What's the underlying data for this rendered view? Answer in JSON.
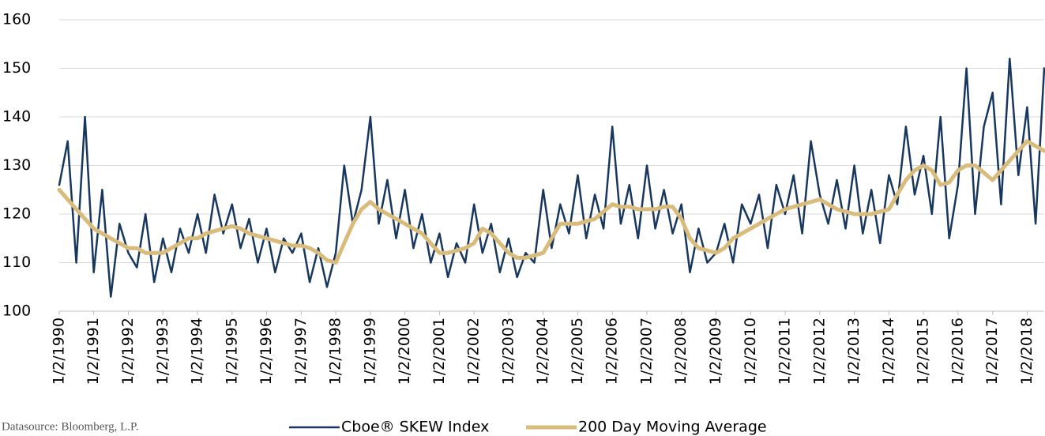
{
  "chart_data": {
    "type": "line",
    "source": "Datasource: Bloomberg, L.P.",
    "x": [
      "1990-01-02",
      "1990-04-01",
      "1990-07-01",
      "1990-10-01",
      "1991-01-02",
      "1991-04-01",
      "1991-07-01",
      "1991-10-01",
      "1992-01-02",
      "1992-04-01",
      "1992-07-01",
      "1992-10-01",
      "1993-01-02",
      "1993-04-01",
      "1993-07-01",
      "1993-10-01",
      "1994-01-02",
      "1994-04-01",
      "1994-07-01",
      "1994-10-01",
      "1995-01-02",
      "1995-04-01",
      "1995-07-01",
      "1995-10-01",
      "1996-01-02",
      "1996-04-01",
      "1996-07-01",
      "1996-10-01",
      "1997-01-02",
      "1997-04-01",
      "1997-07-01",
      "1997-10-01",
      "1998-01-02",
      "1998-04-01",
      "1998-07-01",
      "1998-10-01",
      "1999-01-02",
      "1999-04-01",
      "1999-07-01",
      "1999-10-01",
      "2000-01-02",
      "2000-04-01",
      "2000-07-01",
      "2000-10-01",
      "2001-01-02",
      "2001-04-01",
      "2001-07-01",
      "2001-10-01",
      "2002-01-02",
      "2002-04-01",
      "2002-07-01",
      "2002-10-01",
      "2003-01-02",
      "2003-04-01",
      "2003-07-01",
      "2003-10-01",
      "2004-01-02",
      "2004-04-01",
      "2004-07-01",
      "2004-10-01",
      "2005-01-02",
      "2005-04-01",
      "2005-07-01",
      "2005-10-01",
      "2006-01-02",
      "2006-04-01",
      "2006-07-01",
      "2006-10-01",
      "2007-01-02",
      "2007-04-01",
      "2007-07-01",
      "2007-10-01",
      "2008-01-02",
      "2008-04-01",
      "2008-07-01",
      "2008-10-01",
      "2009-01-02",
      "2009-04-01",
      "2009-07-01",
      "2009-10-01",
      "2010-01-02",
      "2010-04-01",
      "2010-07-01",
      "2010-10-01",
      "2011-01-02",
      "2011-04-01",
      "2011-07-01",
      "2011-10-01",
      "2012-01-02",
      "2012-04-01",
      "2012-07-01",
      "2012-10-01",
      "2013-01-02",
      "2013-04-01",
      "2013-07-01",
      "2013-10-01",
      "2014-01-02",
      "2014-04-01",
      "2014-07-01",
      "2014-10-01",
      "2015-01-02",
      "2015-04-01",
      "2015-07-01",
      "2015-10-01",
      "2016-01-02",
      "2016-04-01",
      "2016-07-01",
      "2016-10-01",
      "2017-01-02",
      "2017-04-01",
      "2017-07-01",
      "2017-10-01",
      "2018-01-02",
      "2018-04-01",
      "2018-07-01"
    ],
    "series": [
      {
        "name": "Cboe® SKEW Index",
        "color": "#17375e",
        "width": 2.5,
        "values": [
          126,
          135,
          110,
          140,
          108,
          125,
          103,
          118,
          112,
          109,
          120,
          106,
          115,
          108,
          117,
          112,
          120,
          112,
          124,
          116,
          122,
          113,
          119,
          110,
          117,
          108,
          115,
          112,
          116,
          106,
          113,
          105,
          112,
          130,
          118,
          125,
          140,
          118,
          127,
          115,
          125,
          113,
          120,
          110,
          116,
          107,
          114,
          110,
          122,
          112,
          118,
          108,
          115,
          107,
          112,
          110,
          125,
          113,
          122,
          116,
          128,
          115,
          124,
          117,
          138,
          118,
          126,
          115,
          130,
          117,
          125,
          116,
          122,
          108,
          117,
          110,
          112,
          118,
          110,
          122,
          118,
          124,
          113,
          126,
          120,
          128,
          116,
          135,
          124,
          118,
          127,
          117,
          130,
          116,
          125,
          114,
          128,
          122,
          138,
          124,
          132,
          120,
          140,
          115,
          126,
          150,
          120,
          138,
          145,
          122,
          152,
          128,
          142,
          118,
          150
        ]
      },
      {
        "name": "200 Day Moving Average",
        "color": "#d9bb7b",
        "width": 5,
        "values": [
          125,
          123,
          121,
          119,
          117,
          116,
          115,
          114,
          113,
          113,
          112,
          112,
          112,
          113,
          114,
          115,
          115,
          116,
          116.5,
          117,
          117.5,
          117,
          116,
          115.5,
          115,
          114.5,
          114,
          113.5,
          113.5,
          113,
          112,
          110.5,
          110,
          114,
          118,
          121,
          122.5,
          121,
          120,
          119,
          118,
          117,
          116,
          114,
          112,
          112,
          112.5,
          113,
          114,
          117,
          116,
          114,
          112,
          111,
          111,
          111.5,
          112,
          115,
          118,
          118,
          118,
          118.5,
          119,
          120.5,
          122,
          121.5,
          121.5,
          121,
          121,
          121,
          121.5,
          121.5,
          119,
          115,
          113,
          112.5,
          112,
          113,
          115,
          116,
          117,
          118,
          119,
          120,
          121,
          121.5,
          122,
          122.5,
          123,
          122,
          121,
          120.5,
          120,
          120,
          120,
          120.5,
          121,
          124,
          127,
          129,
          130,
          129,
          126,
          126.5,
          129,
          130,
          130,
          128.5,
          127,
          129,
          131,
          133,
          135,
          134,
          133
        ]
      }
    ],
    "xlim": [
      "1990-01-02",
      "2018-07-01"
    ],
    "ylim": [
      100,
      160
    ],
    "yticks": [
      100,
      110,
      120,
      130,
      140,
      150,
      160
    ],
    "grid": true,
    "xticks": [
      {
        "value": "1990-01-02",
        "label": "1/2/1990"
      },
      {
        "value": "1991-01-02",
        "label": "1/2/1991"
      },
      {
        "value": "1992-01-02",
        "label": "1/2/1992"
      },
      {
        "value": "1993-01-02",
        "label": "1/2/1993"
      },
      {
        "value": "1994-01-02",
        "label": "1/2/1994"
      },
      {
        "value": "1995-01-02",
        "label": "1/2/1995"
      },
      {
        "value": "1996-01-02",
        "label": "1/2/1996"
      },
      {
        "value": "1997-01-02",
        "label": "1/2/1997"
      },
      {
        "value": "1998-01-02",
        "label": "1/2/1998"
      },
      {
        "value": "1999-01-02",
        "label": "1/2/1999"
      },
      {
        "value": "2000-01-02",
        "label": "1/2/2000"
      },
      {
        "value": "2001-01-02",
        "label": "1/2/2001"
      },
      {
        "value": "2002-01-02",
        "label": "1/2/2002"
      },
      {
        "value": "2003-01-02",
        "label": "1/2/2003"
      },
      {
        "value": "2004-01-02",
        "label": "1/2/2004"
      },
      {
        "value": "2005-01-02",
        "label": "1/2/2005"
      },
      {
        "value": "2006-01-02",
        "label": "1/2/2006"
      },
      {
        "value": "2007-01-02",
        "label": "1/2/2007"
      },
      {
        "value": "2008-01-02",
        "label": "1/2/2008"
      },
      {
        "value": "2009-01-02",
        "label": "1/2/2009"
      },
      {
        "value": "2010-01-02",
        "label": "1/2/2010"
      },
      {
        "value": "2011-01-02",
        "label": "1/2/2011"
      },
      {
        "value": "2012-01-02",
        "label": "1/2/2012"
      },
      {
        "value": "2013-01-02",
        "label": "1/2/2013"
      },
      {
        "value": "2014-01-02",
        "label": "1/2/2014"
      },
      {
        "value": "2015-01-02",
        "label": "1/2/2015"
      },
      {
        "value": "2016-01-02",
        "label": "1/2/2016"
      },
      {
        "value": "2017-01-02",
        "label": "1/2/2017"
      },
      {
        "value": "2018-01-02",
        "label": "1/2/2018"
      }
    ]
  }
}
